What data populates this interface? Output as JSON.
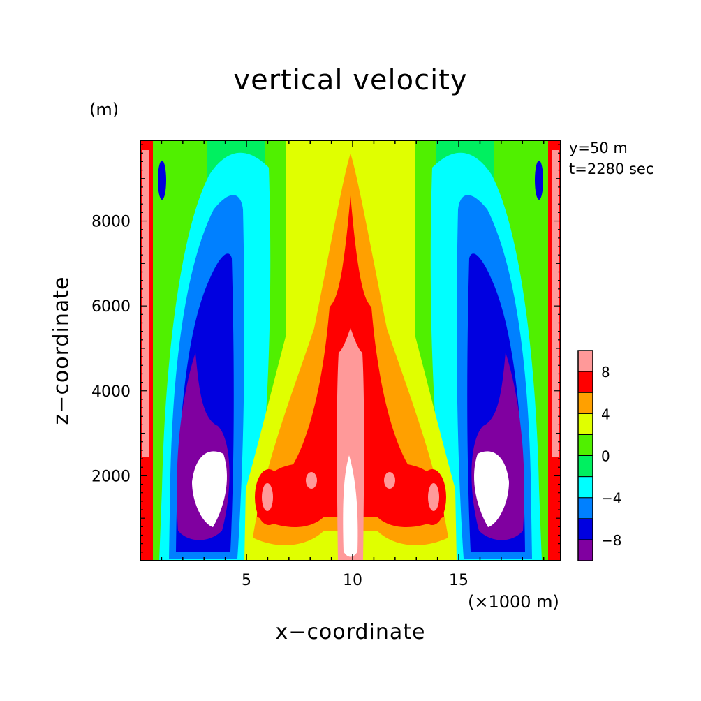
{
  "chart_data": {
    "type": "heatmap",
    "title": "vertical velocity",
    "xlabel": "x−coordinate",
    "ylabel": "z−coordinate",
    "x_unit": "(×1000 m)",
    "y_unit": "(m)",
    "annotations": [
      "y=50 m",
      "t=2280 sec"
    ],
    "xlim": [
      0,
      19.8
    ],
    "ylim": [
      0,
      9900
    ],
    "x_ticks": [
      5,
      10,
      15
    ],
    "y_ticks": [
      2000,
      4000,
      6000,
      8000
    ],
    "colorbar": {
      "levels": [
        -10,
        -8,
        -6,
        -4,
        -2,
        0,
        2,
        4,
        6,
        8,
        10
      ],
      "labels": [
        -8,
        -4,
        0,
        4,
        8
      ],
      "colors": [
        "#8000a0",
        "#0000e0",
        "#0080ff",
        "#00ffff",
        "#00f060",
        "#50f000",
        "#e0ff00",
        "#ffa000",
        "#ff0000",
        "#ff9999"
      ]
    },
    "fields": [
      {
        "name": "central updraft (w>10)",
        "x": [
          10.0
        ],
        "z": [
          200,
          2500
        ],
        "level": ">10"
      },
      {
        "name": "central updraft (8..10)",
        "x": [
          10.0
        ],
        "z": [
          200,
          5000
        ],
        "level": "8..10"
      },
      {
        "name": "downdraft core left (w<-10)",
        "x": [
          3.5
        ],
        "z": [
          600,
          2600
        ],
        "level": "<-10"
      },
      {
        "name": "downdraft core right (w<-10)",
        "x": [
          16.5
        ],
        "z": [
          600,
          2600
        ],
        "level": "<-10"
      },
      {
        "name": "side updraft left (8..10)",
        "x": [
          6.0
        ],
        "z": [
          800,
          2000
        ],
        "level": "8..10"
      },
      {
        "name": "side updraft right (8..10)",
        "x": [
          14.0
        ],
        "z": [
          800,
          2000
        ],
        "level": "8..10"
      }
    ]
  }
}
